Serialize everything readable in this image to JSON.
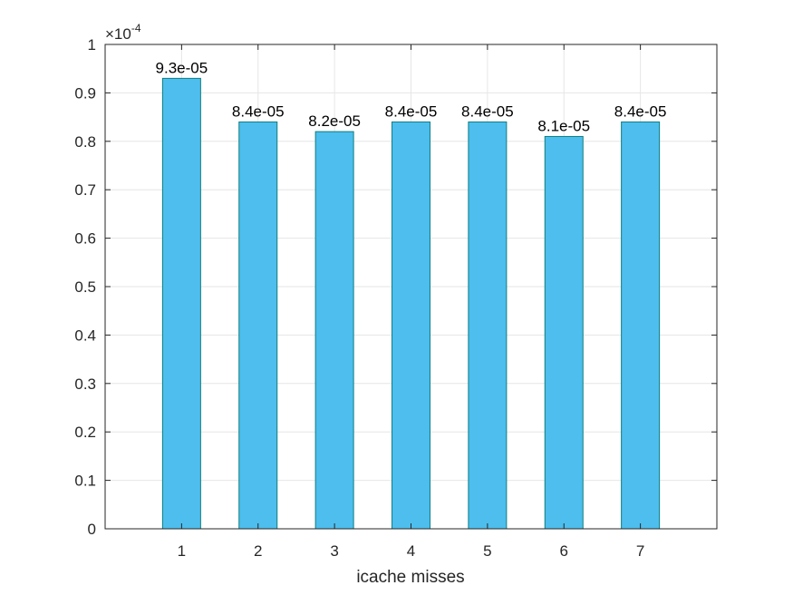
{
  "chart_data": {
    "type": "bar",
    "categories": [
      "1",
      "2",
      "3",
      "4",
      "5",
      "6",
      "7"
    ],
    "values": [
      9.3e-05,
      8.4e-05,
      8.2e-05,
      8.4e-05,
      8.4e-05,
      8.1e-05,
      8.4e-05
    ],
    "data_labels": [
      "9.3e-05",
      "8.4e-05",
      "8.2e-05",
      "8.4e-05",
      "8.4e-05",
      "8.1e-05",
      "8.4e-05"
    ],
    "xlabel": "icache misses",
    "ylabel": "",
    "xlim": [
      0,
      8
    ],
    "ylim": [
      0,
      0.0001
    ],
    "y_ticks": [
      0,
      0.1,
      0.2,
      0.3,
      0.4,
      0.5,
      0.6,
      0.7,
      0.8,
      0.9,
      1
    ],
    "y_tick_labels": [
      "0",
      "0.1",
      "0.2",
      "0.3",
      "0.4",
      "0.5",
      "0.6",
      "0.7",
      "0.8",
      "0.9",
      "1"
    ],
    "y_exponent": {
      "base": "×10",
      "power": "-4"
    },
    "grid": true,
    "colors": {
      "bar_fill": "#4dbeee",
      "bar_edge": "#0f7f7f",
      "grid": "#e6e6e6",
      "axis": "#262626"
    }
  }
}
